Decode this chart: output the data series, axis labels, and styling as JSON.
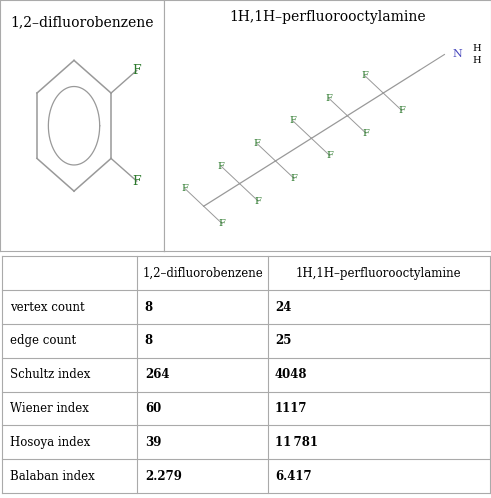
{
  "title1": "1,2–difluorobenzene",
  "title2": "1H,1H–perfluorooctylamine",
  "col_header1": "1,2–difluorobenzene",
  "col_header2": "1H,1H–perfluorooctylamine",
  "row_labels": [
    "vertex count",
    "edge count",
    "Schultz index",
    "Wiener index",
    "Hosoya index",
    "Balaban index"
  ],
  "col1_values": [
    "8",
    "8",
    "264",
    "60",
    "39",
    "2.279"
  ],
  "col2_values": [
    "24",
    "25",
    "4048",
    "1117",
    "11 781",
    "6.417"
  ],
  "bg_color": "#ffffff",
  "text_color": "#000000",
  "header_color": "#000000",
  "border_color": "#aaaaaa",
  "fluorine_color": "#2d7a2d",
  "nitrogen_color": "#4444bb",
  "bond_color": "#999999",
  "title_fontsize": 10,
  "table_fontsize": 9
}
